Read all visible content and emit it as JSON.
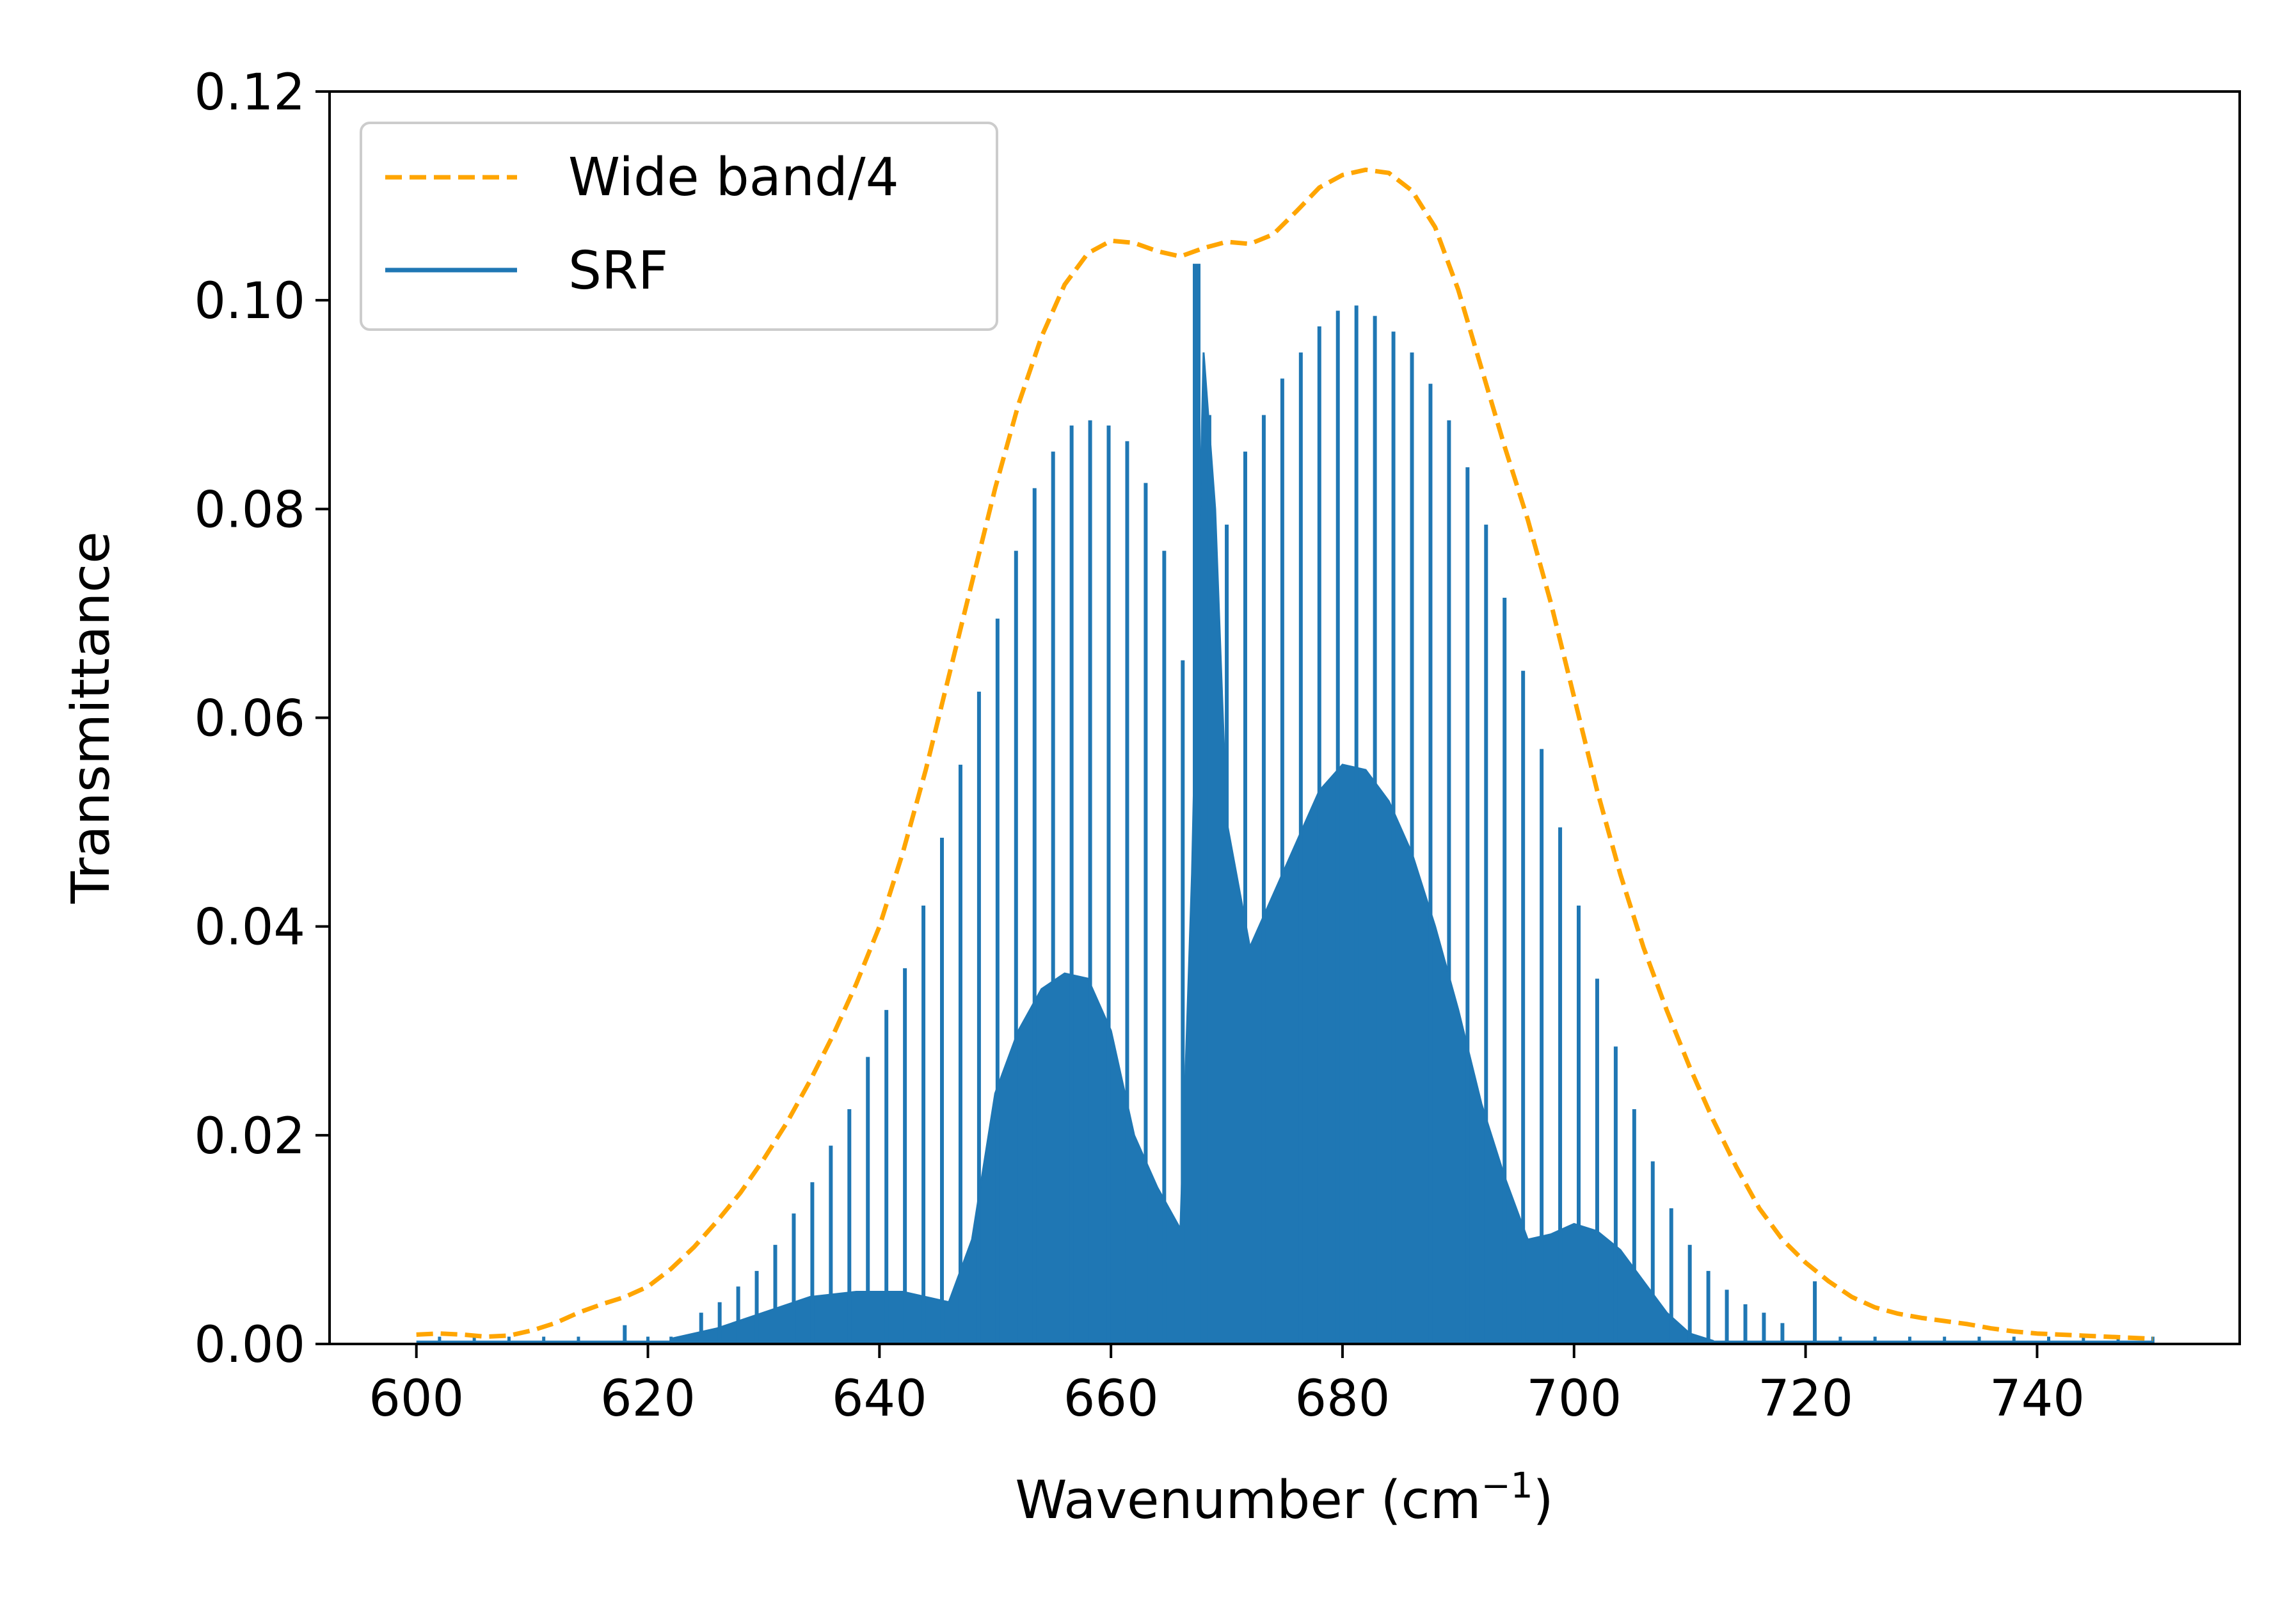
{
  "chart_data": {
    "type": "line",
    "title": "",
    "xlabel_main": "Wavenumber (cm",
    "xlabel_sup": "−1",
    "xlabel_close": ")",
    "ylabel": "Transmittance",
    "xlim": [
      592.5,
      757.5
    ],
    "ylim": [
      0.0,
      0.12
    ],
    "xticks": [
      600,
      620,
      640,
      660,
      680,
      700,
      720,
      740
    ],
    "xtick_labels": [
      "600",
      "620",
      "640",
      "660",
      "680",
      "700",
      "720",
      "740"
    ],
    "yticks": [
      0.0,
      0.02,
      0.04,
      0.06,
      0.08,
      0.1,
      0.12
    ],
    "ytick_labels": [
      "0.00",
      "0.02",
      "0.04",
      "0.06",
      "0.08",
      "0.10",
      "0.12"
    ],
    "grid": false,
    "legend_position": "upper-left",
    "series": [
      {
        "name": "Wide band/4",
        "style": "dashed",
        "color": "#ffa500",
        "x": [
          600,
          602,
          604,
          606,
          608,
          610,
          612,
          614,
          616,
          618,
          620,
          622,
          624,
          626,
          628,
          630,
          632,
          634,
          636,
          638,
          640,
          642,
          644,
          646,
          648,
          650,
          652,
          654,
          656,
          658,
          660,
          662,
          664,
          666,
          668,
          670,
          672,
          674,
          676,
          678,
          680,
          682,
          684,
          686,
          688,
          690,
          692,
          694,
          696,
          698,
          700,
          702,
          704,
          706,
          708,
          710,
          712,
          714,
          716,
          718,
          720,
          722,
          724,
          726,
          728,
          730,
          732,
          734,
          736,
          738,
          740,
          742,
          744,
          746,
          748,
          750
        ],
        "y": [
          0.0009,
          0.001,
          0.0009,
          0.0007,
          0.0008,
          0.0013,
          0.002,
          0.003,
          0.0038,
          0.0045,
          0.0055,
          0.0072,
          0.0093,
          0.0118,
          0.0145,
          0.0177,
          0.0212,
          0.0252,
          0.0296,
          0.0345,
          0.04,
          0.047,
          0.055,
          0.064,
          0.073,
          0.082,
          0.09,
          0.0965,
          0.1015,
          0.1045,
          0.1057,
          0.1055,
          0.1047,
          0.1042,
          0.105,
          0.1056,
          0.1054,
          0.1063,
          0.1085,
          0.1108,
          0.112,
          0.1125,
          0.1122,
          0.1105,
          0.107,
          0.101,
          0.0935,
          0.086,
          0.079,
          0.071,
          0.062,
          0.053,
          0.045,
          0.038,
          0.032,
          0.0265,
          0.0215,
          0.017,
          0.013,
          0.01,
          0.0078,
          0.006,
          0.0045,
          0.0035,
          0.0029,
          0.0025,
          0.0022,
          0.0019,
          0.0015,
          0.0012,
          0.001,
          0.0009,
          0.0008,
          0.0007,
          0.0006,
          0.0005
        ]
      },
      {
        "name": "SRF",
        "style": "solid",
        "color": "#1f77b4",
        "peaks": {
          "x": [
            618.0,
            624.6,
            626.2,
            627.8,
            629.4,
            631.0,
            632.6,
            634.2,
            635.8,
            637.4,
            639.0,
            640.6,
            642.2,
            643.8,
            645.4,
            647.0,
            648.6,
            650.2,
            651.8,
            653.4,
            655.0,
            656.6,
            658.2,
            659.8,
            661.4,
            663.0,
            664.6,
            666.2,
            667.4,
            668.5,
            670.0,
            671.6,
            673.2,
            674.8,
            676.4,
            678.0,
            679.6,
            681.2,
            682.8,
            684.4,
            686.0,
            687.6,
            689.2,
            690.8,
            692.4,
            694.0,
            695.6,
            697.2,
            698.8,
            700.4,
            702.0,
            703.6,
            705.2,
            706.8,
            708.4,
            710.0,
            711.6,
            713.2,
            714.8,
            716.4,
            718.0,
            720.8
          ],
          "y": [
            0.0018,
            0.003,
            0.004,
            0.0055,
            0.007,
            0.0095,
            0.0125,
            0.0155,
            0.019,
            0.0225,
            0.0275,
            0.032,
            0.036,
            0.042,
            0.0485,
            0.0555,
            0.0625,
            0.0695,
            0.076,
            0.082,
            0.0855,
            0.088,
            0.0885,
            0.088,
            0.0865,
            0.0825,
            0.076,
            0.0655,
            0.1035,
            0.089,
            0.0785,
            0.0855,
            0.089,
            0.0925,
            0.095,
            0.0975,
            0.099,
            0.0995,
            0.0985,
            0.097,
            0.095,
            0.092,
            0.0885,
            0.084,
            0.0785,
            0.0715,
            0.0645,
            0.057,
            0.0495,
            0.042,
            0.035,
            0.0285,
            0.0225,
            0.0175,
            0.013,
            0.0095,
            0.007,
            0.0052,
            0.0038,
            0.003,
            0.002,
            0.006
          ]
        },
        "envelope": {
          "x": [
            622,
            626,
            630,
            634,
            638,
            642,
            646,
            648,
            650,
            652,
            654,
            656,
            658,
            660,
            662,
            664,
            666,
            667,
            668,
            669,
            670,
            672,
            674,
            676,
            678,
            680,
            682,
            684,
            686,
            688,
            690,
            692,
            694,
            696,
            698,
            700,
            702,
            704,
            706,
            708,
            710,
            712
          ],
          "y": [
            0.0005,
            0.0015,
            0.003,
            0.0045,
            0.005,
            0.005,
            0.004,
            0.01,
            0.024,
            0.03,
            0.034,
            0.0355,
            0.035,
            0.03,
            0.02,
            0.015,
            0.011,
            0.045,
            0.095,
            0.08,
            0.05,
            0.038,
            0.043,
            0.048,
            0.053,
            0.0555,
            0.055,
            0.052,
            0.047,
            0.04,
            0.032,
            0.023,
            0.016,
            0.01,
            0.0105,
            0.0115,
            0.0108,
            0.009,
            0.006,
            0.003,
            0.001,
            0.0003
          ]
        }
      }
    ]
  }
}
